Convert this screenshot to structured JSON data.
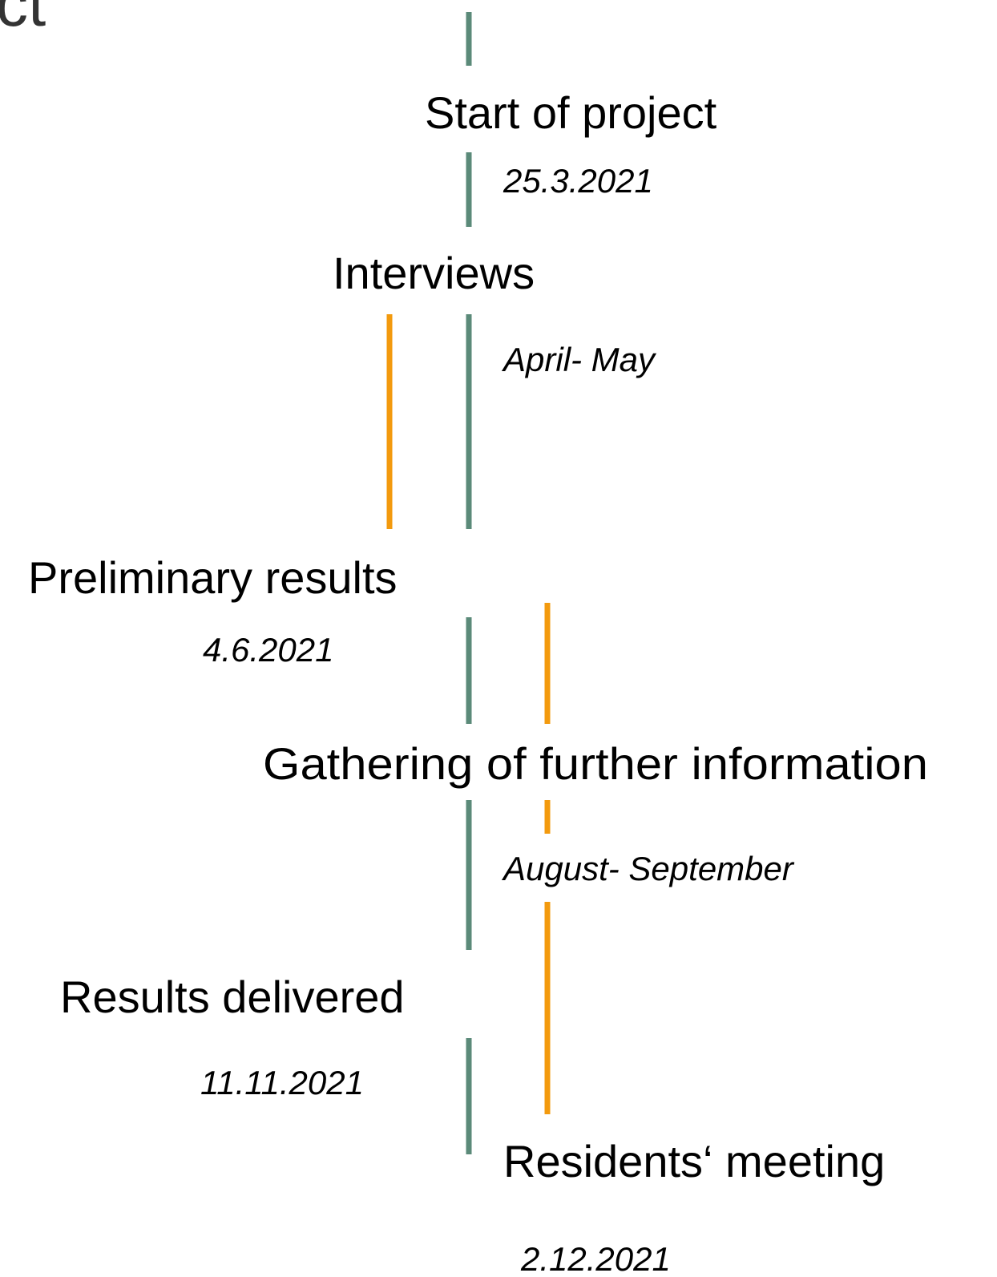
{
  "corner_text": "ct",
  "events": [
    {
      "title": "Start of project",
      "date": "25.3.2021"
    },
    {
      "title": "Interviews",
      "date": "April- May"
    },
    {
      "title": "Preliminary results",
      "date": "4.6.2021"
    },
    {
      "title": "Gathering of further information",
      "date": "August- September"
    },
    {
      "title": "Results delivered",
      "date": "11.11.2021"
    },
    {
      "title": "Residents‘ meeting",
      "date": "2.12.2021"
    }
  ]
}
